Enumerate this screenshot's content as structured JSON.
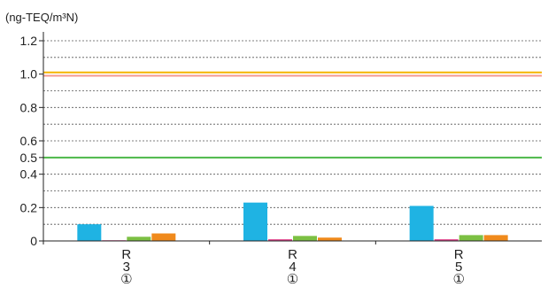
{
  "chart_data": {
    "type": "bar",
    "unit_label": "(ng-TEQ/m³N)",
    "ylim": [
      0,
      1.2
    ],
    "y_ticks": [
      {
        "value": 0,
        "label": "0"
      },
      {
        "value": 0.2,
        "label": "0.2"
      },
      {
        "value": 0.4,
        "label": "0.4"
      },
      {
        "value": 0.5,
        "label": "0.5"
      },
      {
        "value": 0.6,
        "label": "0.6"
      },
      {
        "value": 0.8,
        "label": "0.8"
      },
      {
        "value": 1.0,
        "label": "1.0"
      },
      {
        "value": 1.2,
        "label": "1.2"
      }
    ],
    "grid_values": [
      0.1,
      0.2,
      0.3,
      0.4,
      0.6,
      0.7,
      0.8,
      0.9,
      1.1,
      1.2
    ],
    "grid": "dashed",
    "categories": [
      {
        "line1": "R",
        "line2": "3",
        "line3": "①"
      },
      {
        "line1": "R",
        "line2": "4",
        "line3": "①"
      },
      {
        "line1": "R",
        "line2": "5",
        "line3": "①"
      }
    ],
    "series": [
      {
        "color": "#1fb3e3",
        "values": [
          0.1,
          0.23,
          0.21
        ]
      },
      {
        "color": "#e0428a",
        "values": [
          0.004,
          0.01,
          0.01
        ]
      },
      {
        "color": "#7cc043",
        "values": [
          0.025,
          0.03,
          0.035
        ]
      },
      {
        "color": "#f08a1c",
        "values": [
          0.045,
          0.02,
          0.035
        ]
      }
    ],
    "reference_lines": [
      {
        "value": 1.01,
        "color": "#f5b400"
      },
      {
        "value": 0.99,
        "color": "#f49a90"
      },
      {
        "value": 0.5,
        "color": "#4cb848"
      }
    ]
  }
}
